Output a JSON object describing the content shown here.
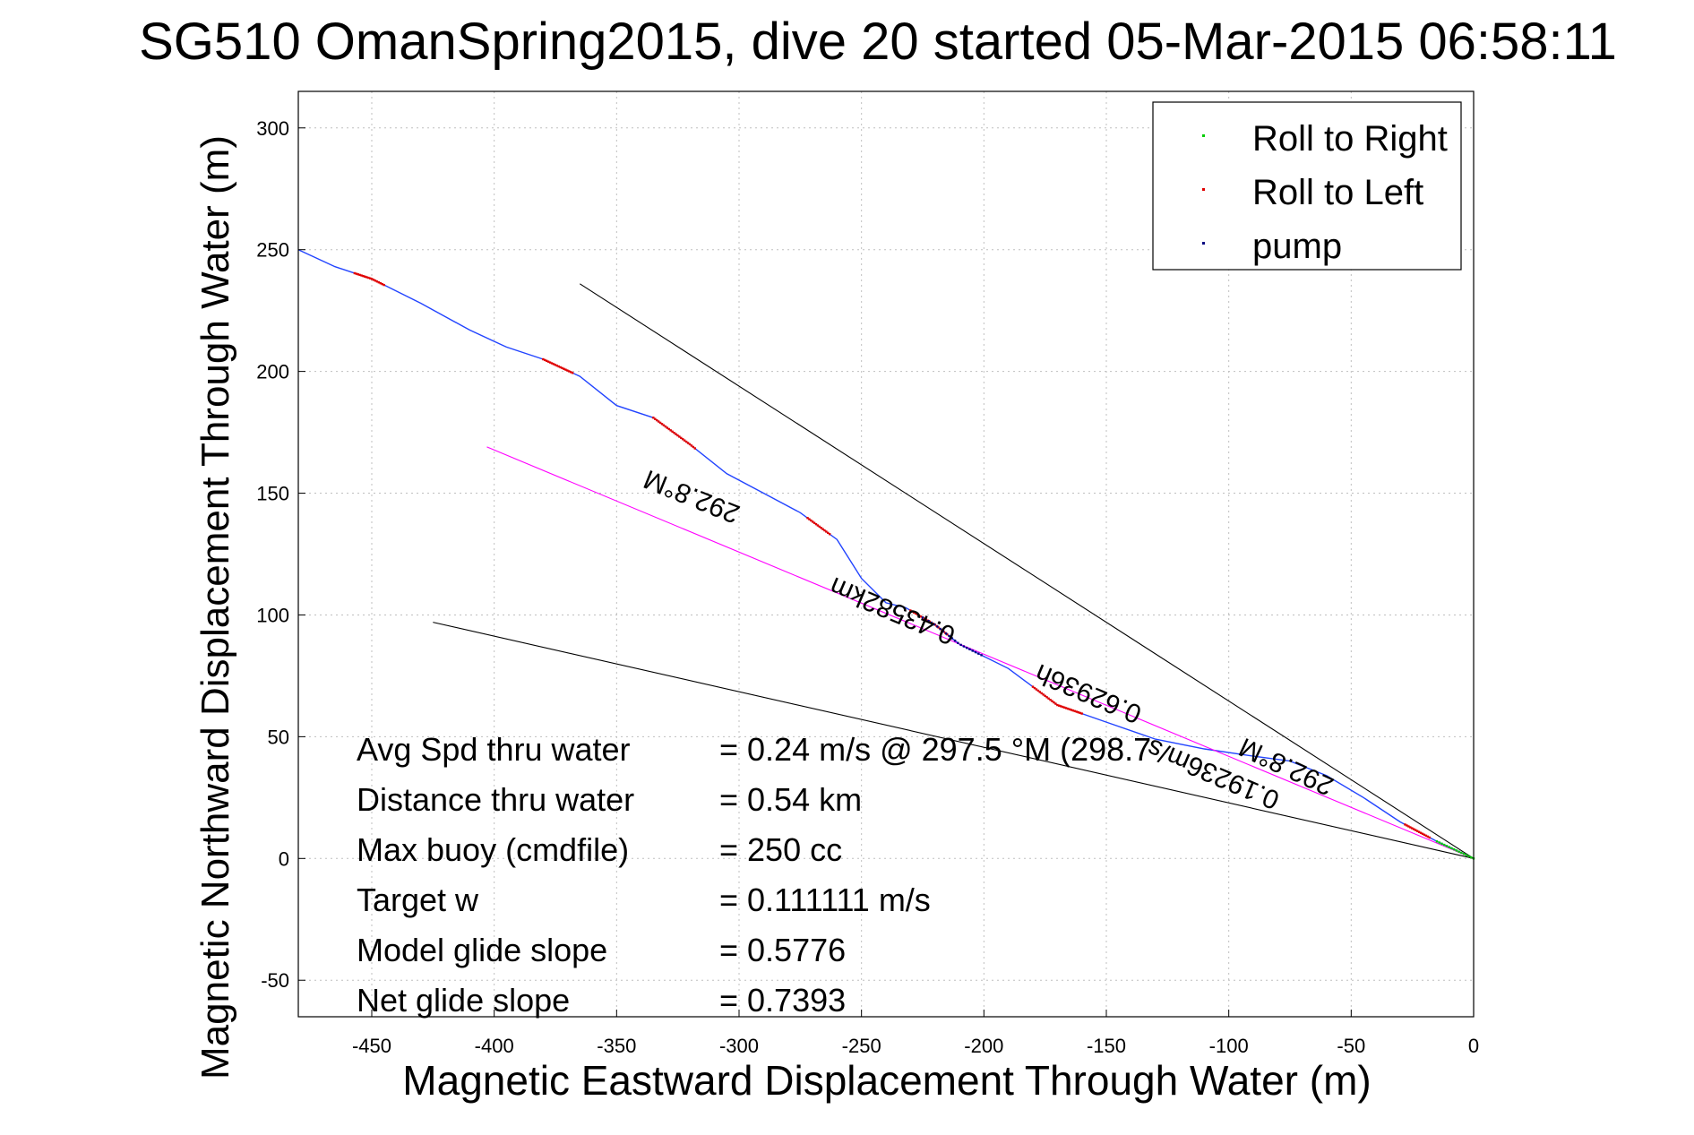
{
  "chart_data": {
    "type": "line",
    "title": "SG510 OmanSpring2015, dive 20 started 05-Mar-2015 06:58:11",
    "xlabel": "Magnetic Eastward Displacement Through Water (m)",
    "ylabel": "Magnetic Northward Displacement Through Water (m)",
    "xlim": [
      -480,
      0
    ],
    "ylim": [
      -65,
      315
    ],
    "xticks": [
      -450,
      -400,
      -350,
      -300,
      -250,
      -200,
      -150,
      -100,
      -50,
      0
    ],
    "yticks": [
      -50,
      0,
      50,
      100,
      150,
      200,
      250,
      300
    ],
    "grid": true,
    "legend": {
      "placement": "top-right",
      "entries": [
        {
          "label": "Roll to Right",
          "color": "#00cc00"
        },
        {
          "label": "Roll to Left",
          "color": "#e00000"
        },
        {
          "label": "pump",
          "color": "#000080"
        }
      ]
    },
    "series": [
      {
        "role": "track",
        "color": "#2244ff",
        "x": [
          -480,
          -465,
          -450,
          -430,
          -410,
          -395,
          -380,
          -365,
          -350,
          -335,
          -320,
          -305,
          -290,
          -275,
          -260,
          -250,
          -240,
          -232,
          -220,
          -210,
          -190,
          -170,
          -150,
          -130,
          -110,
          -90,
          -75,
          -60,
          -45,
          -30,
          -15,
          0
        ],
        "y": [
          250,
          243,
          238,
          228,
          217,
          210,
          205,
          198,
          186,
          181,
          170,
          158,
          150,
          142,
          131,
          115,
          105,
          103,
          96,
          88,
          78,
          63,
          56,
          49,
          45,
          42,
          40,
          34,
          25,
          15,
          7,
          0
        ]
      },
      {
        "role": "heading-line",
        "color": "#ff00ff",
        "x": [
          -403,
          0
        ],
        "y": [
          169,
          0
        ]
      },
      {
        "role": "bound-upper",
        "color": "#000000",
        "x": [
          -365,
          0
        ],
        "y": [
          236,
          0
        ]
      },
      {
        "role": "bound-lower",
        "color": "#000000",
        "x": [
          -425,
          0
        ],
        "y": [
          97,
          0
        ]
      }
    ],
    "marker_segments": [
      {
        "x_start": -457,
        "x_end": -445
      },
      {
        "x_start": -380,
        "x_end": -368
      },
      {
        "x_start": -335,
        "x_end": -318
      },
      {
        "x_start": -272,
        "x_end": -263
      },
      {
        "x_start": -230,
        "x_end": -215
      },
      {
        "x_start": -180,
        "x_end": -160
      },
      {
        "x_start": -28,
        "x_end": -18
      }
    ],
    "rotated_annotations": [
      {
        "text": "292.8°M",
        "x": -318,
        "y": 152,
        "angle": 202
      },
      {
        "text": "0.43582km",
        "x": -236,
        "y": 105,
        "angle": 203
      },
      {
        "text": "0.62936h",
        "x": -156,
        "y": 71,
        "angle": 203
      },
      {
        "text": "0.19236m/s",
        "x": -105,
        "y": 38,
        "angle": 203
      },
      {
        "text": "292.8°M",
        "x": -75,
        "y": 41,
        "angle": 205
      }
    ],
    "stats": [
      {
        "label": "Avg Spd thru water",
        "value": "=  0.24 m/s @ 297.5 °M (298.7"
      },
      {
        "label": "Distance thru water",
        "value": "=  0.54 km"
      },
      {
        "label": "Max buoy (cmdfile)",
        "value": "= 250 cc"
      },
      {
        "label": "Target w",
        "value": "= 0.111111 m/s"
      },
      {
        "label": "Model glide slope",
        "value": "= 0.5776"
      },
      {
        "label": "Net glide slope",
        "value": "= 0.7393"
      }
    ]
  }
}
